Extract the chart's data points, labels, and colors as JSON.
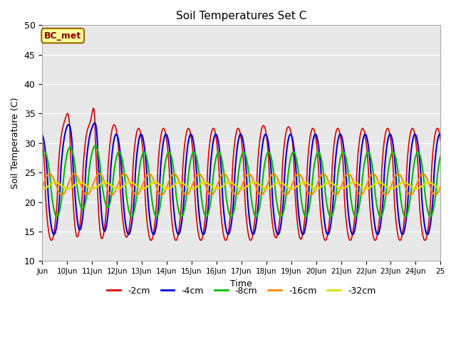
{
  "title": "Soil Temperatures Set C",
  "xlabel": "Time",
  "ylabel": "Soil Temperature (C)",
  "ylim": [
    10,
    50
  ],
  "xlim_days": [
    9,
    25
  ],
  "annotation": "BC_met",
  "bg_color": "#e8e8e8",
  "tick_labels": [
    "Jun",
    "10Jun",
    "11Jun",
    "12Jun",
    "13Jun",
    "14Jun",
    "15Jun",
    "16Jun",
    "17Jun",
    "18Jun",
    "19Jun",
    "20Jun",
    "21Jun",
    "22Jun",
    "23Jun",
    "24Jun",
    "25"
  ],
  "tick_positions": [
    9,
    10,
    11,
    12,
    13,
    14,
    15,
    16,
    17,
    18,
    19,
    20,
    21,
    22,
    23,
    24,
    25
  ],
  "series": {
    "-2cm": {
      "color": "#dd0000",
      "lw": 1.2,
      "ls": "-"
    },
    "-4cm": {
      "color": "#0000dd",
      "lw": 1.5,
      "ls": "-"
    },
    "-8cm": {
      "color": "#00bb00",
      "lw": 1.5,
      "ls": "-"
    },
    "-16cm": {
      "color": "#ff8800",
      "lw": 1.5,
      "ls": "-"
    },
    "-32cm": {
      "color": "#dddd00",
      "lw": 1.8,
      "ls": "-"
    }
  },
  "legend_order": [
    "-2cm",
    "-4cm",
    "-8cm",
    "-16cm",
    "-32cm"
  ]
}
